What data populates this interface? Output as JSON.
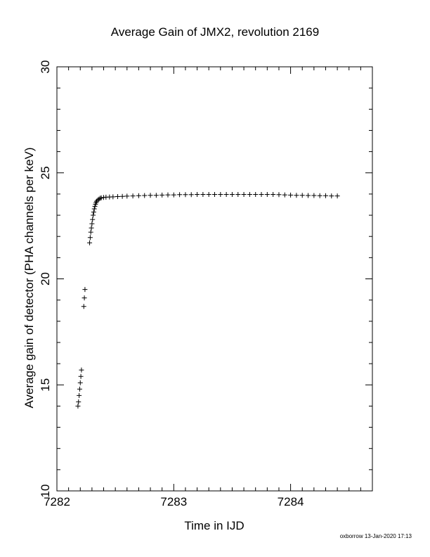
{
  "chart_data": {
    "type": "scatter",
    "title": "Average Gain of JMX2, revolution 2169",
    "xlabel": "Time in IJD",
    "ylabel": "Average gain of detector (PHA channels per keV)",
    "xlim": [
      7282,
      7284.7
    ],
    "ylim": [
      10,
      30
    ],
    "xticks": [
      7282,
      7283,
      7284
    ],
    "yticks": [
      10,
      15,
      20,
      25,
      30
    ],
    "marker": "plus",
    "series": [
      {
        "points": [
          [
            7282.18,
            14.0
          ],
          [
            7282.185,
            14.2
          ],
          [
            7282.19,
            14.5
          ],
          [
            7282.195,
            14.8
          ],
          [
            7282.2,
            15.1
          ],
          [
            7282.205,
            15.4
          ],
          [
            7282.21,
            15.7
          ],
          [
            7282.23,
            18.7
          ],
          [
            7282.235,
            19.1
          ],
          [
            7282.24,
            19.5
          ],
          [
            7282.28,
            21.7
          ],
          [
            7282.285,
            21.95
          ],
          [
            7282.29,
            22.2
          ],
          [
            7282.295,
            22.4
          ],
          [
            7282.3,
            22.6
          ],
          [
            7282.305,
            22.8
          ],
          [
            7282.31,
            23.0
          ],
          [
            7282.315,
            23.15
          ],
          [
            7282.32,
            23.3
          ],
          [
            7282.325,
            23.42
          ],
          [
            7282.33,
            23.52
          ],
          [
            7282.335,
            23.6
          ],
          [
            7282.34,
            23.66
          ],
          [
            7282.35,
            23.72
          ],
          [
            7282.36,
            23.76
          ],
          [
            7282.37,
            23.8
          ],
          [
            7282.38,
            23.82
          ],
          [
            7282.4,
            23.84
          ],
          [
            7282.42,
            23.85
          ],
          [
            7282.45,
            23.86
          ],
          [
            7282.48,
            23.87
          ],
          [
            7282.52,
            23.88
          ],
          [
            7282.56,
            23.89
          ],
          [
            7282.6,
            23.9
          ],
          [
            7282.65,
            23.91
          ],
          [
            7282.7,
            23.92
          ],
          [
            7282.75,
            23.93
          ],
          [
            7282.8,
            23.94
          ],
          [
            7282.85,
            23.94
          ],
          [
            7282.9,
            23.95
          ],
          [
            7282.95,
            23.96
          ],
          [
            7283.0,
            23.96
          ],
          [
            7283.05,
            23.97
          ],
          [
            7283.1,
            23.97
          ],
          [
            7283.15,
            23.97
          ],
          [
            7283.2,
            23.98
          ],
          [
            7283.25,
            23.98
          ],
          [
            7283.3,
            23.98
          ],
          [
            7283.35,
            23.98
          ],
          [
            7283.4,
            23.98
          ],
          [
            7283.45,
            23.98
          ],
          [
            7283.5,
            23.98
          ],
          [
            7283.55,
            23.98
          ],
          [
            7283.6,
            23.98
          ],
          [
            7283.65,
            23.98
          ],
          [
            7283.7,
            23.98
          ],
          [
            7283.75,
            23.98
          ],
          [
            7283.8,
            23.98
          ],
          [
            7283.85,
            23.98
          ],
          [
            7283.9,
            23.97
          ],
          [
            7283.95,
            23.96
          ],
          [
            7284.0,
            23.95
          ],
          [
            7284.05,
            23.94
          ],
          [
            7284.1,
            23.94
          ],
          [
            7284.15,
            23.93
          ],
          [
            7284.2,
            23.93
          ],
          [
            7284.25,
            23.92
          ],
          [
            7284.3,
            23.92
          ],
          [
            7284.35,
            23.91
          ],
          [
            7284.4,
            23.91
          ]
        ]
      }
    ]
  },
  "footer": {
    "stamp": "oxborrow 13-Jan-2020 17:13"
  }
}
